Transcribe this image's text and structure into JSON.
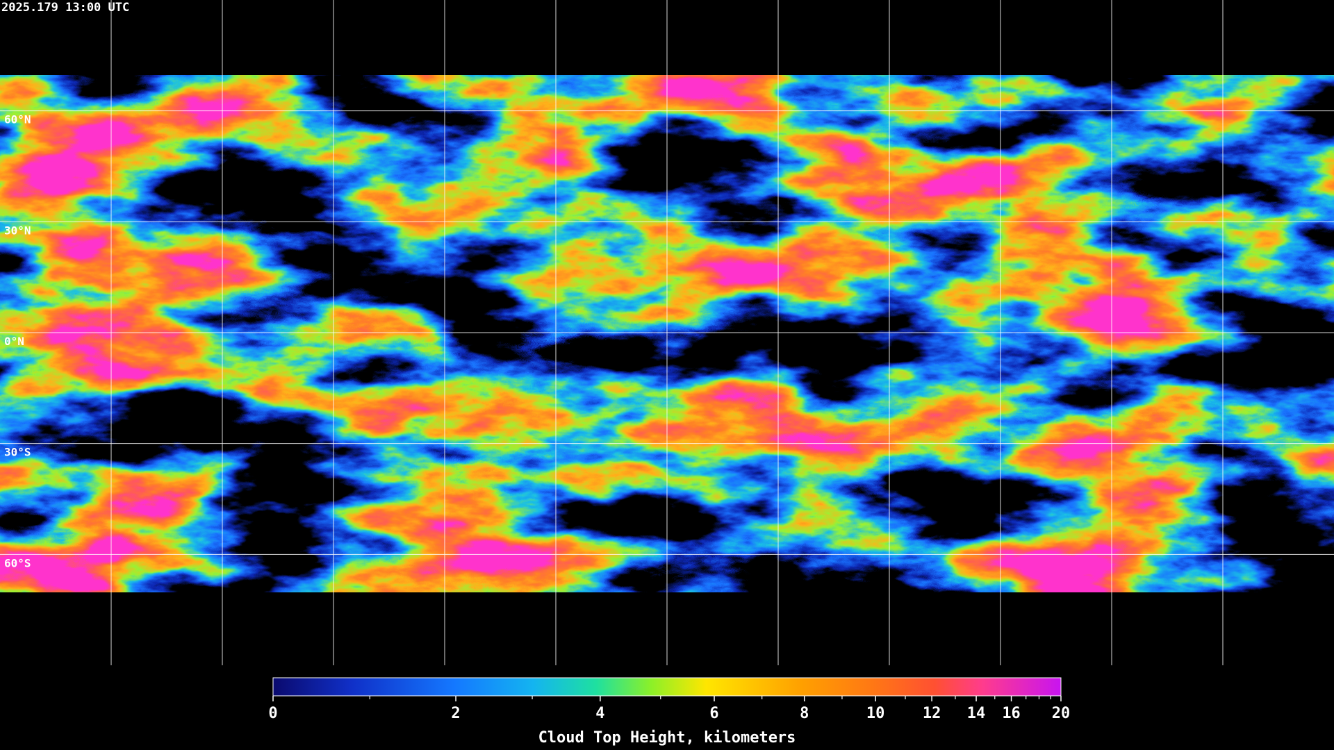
{
  "header": {
    "timestamp": "2025.179 13:00 UTC"
  },
  "map": {
    "xlim": [
      -180,
      180
    ],
    "ylim": [
      -90,
      90
    ],
    "xticks": [
      -150,
      -120,
      -90,
      -60,
      -30,
      0,
      30,
      60,
      90,
      120,
      150
    ],
    "yticks": [
      {
        "value": 60,
        "label": "60°N"
      },
      {
        "value": 30,
        "label": "30°N"
      },
      {
        "value": 0,
        "label": "0°N"
      },
      {
        "value": -30,
        "label": "30°S"
      },
      {
        "value": -60,
        "label": "60°S"
      }
    ]
  },
  "colorbar": {
    "label": "Cloud Top Height, kilometers",
    "lim": [
      0,
      20
    ],
    "ticks": [
      0,
      2,
      4,
      6,
      8,
      10,
      12,
      14,
      16,
      20
    ],
    "minor_ticks": [
      1,
      3,
      5,
      7,
      9,
      11,
      13,
      15,
      17,
      18,
      19
    ]
  }
}
